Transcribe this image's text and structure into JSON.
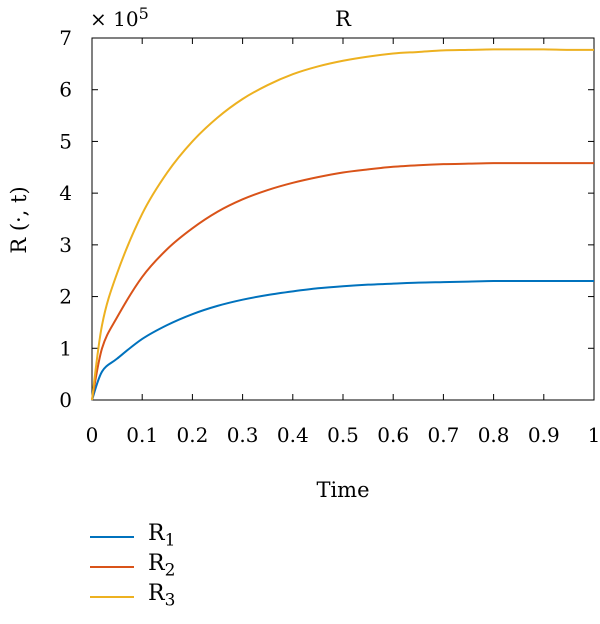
{
  "chart_data": {
    "type": "line",
    "title": "R",
    "xlabel": "Time",
    "ylabel": "R (·, t)",
    "y_multiplier_label": "× 10",
    "y_multiplier_exponent": "5",
    "xlim": [
      0,
      1
    ],
    "ylim": [
      0,
      7
    ],
    "x_ticks": [
      "0",
      "0.1",
      "0.2",
      "0.3",
      "0.4",
      "0.5",
      "0.6",
      "0.7",
      "0.8",
      "0.9",
      "1"
    ],
    "y_ticks": [
      "0",
      "1",
      "2",
      "3",
      "4",
      "5",
      "6",
      "7"
    ],
    "grid": false,
    "legend_position": "bottom-left",
    "x": [
      0,
      0.02,
      0.05,
      0.1,
      0.15,
      0.2,
      0.25,
      0.3,
      0.35,
      0.4,
      0.45,
      0.5,
      0.55,
      0.6,
      0.65,
      0.7,
      0.75,
      0.8,
      0.85,
      0.9,
      0.95,
      1.0
    ],
    "series": [
      {
        "name_base": "R",
        "name_sub": "1",
        "color": "#0072BD",
        "values": [
          0,
          0.55,
          0.8,
          1.18,
          1.45,
          1.66,
          1.82,
          1.94,
          2.03,
          2.1,
          2.16,
          2.2,
          2.23,
          2.25,
          2.27,
          2.28,
          2.29,
          2.3,
          2.3,
          2.3,
          2.3,
          2.3
        ]
      },
      {
        "name_base": "R",
        "name_sub": "2",
        "color": "#D95319",
        "values": [
          0,
          1.0,
          1.6,
          2.38,
          2.92,
          3.32,
          3.64,
          3.88,
          4.06,
          4.2,
          4.31,
          4.4,
          4.46,
          4.51,
          4.54,
          4.56,
          4.57,
          4.58,
          4.58,
          4.58,
          4.58,
          4.58
        ]
      },
      {
        "name_base": "R",
        "name_sub": "3",
        "color": "#EDB120",
        "values": [
          0,
          1.45,
          2.45,
          3.6,
          4.4,
          5.0,
          5.46,
          5.82,
          6.09,
          6.3,
          6.45,
          6.56,
          6.64,
          6.7,
          6.73,
          6.76,
          6.77,
          6.78,
          6.78,
          6.78,
          6.77,
          6.77
        ]
      }
    ]
  }
}
